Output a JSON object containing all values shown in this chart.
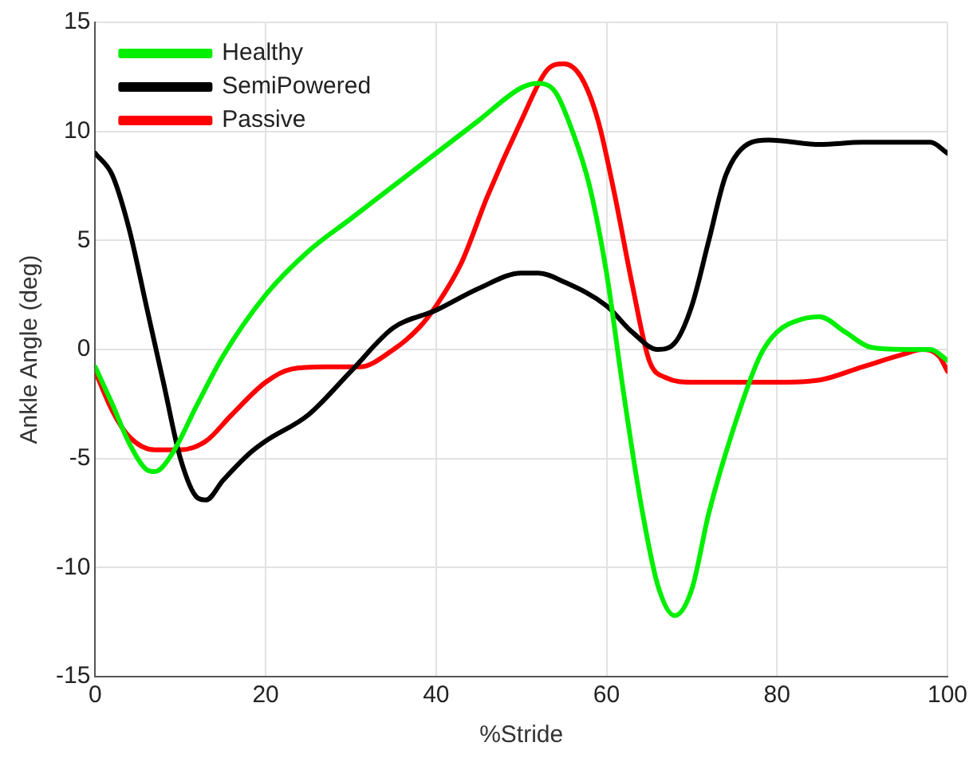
{
  "chart_data": {
    "type": "line",
    "xlabel": "%Stride",
    "ylabel": "Ankle Angle (deg)",
    "xlim": [
      0,
      100
    ],
    "xticks": [
      0,
      20,
      40,
      60,
      80,
      100
    ],
    "ylim": [
      -15,
      15
    ],
    "yticks": [
      -15,
      -10,
      -5,
      0,
      5,
      10,
      15
    ],
    "grid": true,
    "legend": "top left",
    "marker": "none",
    "line_style": "solid",
    "series": [
      {
        "name": "Healthy",
        "color": "#00ee00",
        "x": [
          0,
          2,
          4,
          6,
          7,
          9,
          12,
          15,
          20,
          25,
          30,
          35,
          40,
          45,
          50,
          52,
          54,
          56,
          58,
          60,
          62,
          64,
          66,
          68,
          70,
          72,
          75,
          78,
          80,
          83,
          85,
          88,
          91,
          95,
          98,
          100
        ],
        "values": [
          -0.8,
          -2.5,
          -4.3,
          -5.5,
          -5.6,
          -4.8,
          -2.5,
          -0.3,
          2.5,
          4.5,
          6,
          7.5,
          9,
          10.5,
          12,
          12.2,
          11.8,
          10,
          7.5,
          3.5,
          -2,
          -7,
          -10.8,
          -12.2,
          -11,
          -7.5,
          -3.5,
          -0.3,
          0.8,
          1.4,
          1.5,
          0.8,
          0.1,
          0,
          0,
          -0.5
        ]
      },
      {
        "name": "SemiPowered",
        "color": "#000000",
        "x": [
          0,
          2,
          4,
          6,
          8,
          10,
          12,
          13,
          15,
          18,
          20,
          25,
          30,
          35,
          40,
          45,
          50,
          52,
          55,
          60,
          63,
          66,
          68,
          70,
          72,
          74,
          77,
          79,
          85,
          90,
          95,
          98,
          100
        ],
        "values": [
          9,
          8,
          5.5,
          2,
          -1.5,
          -5,
          -6.8,
          -6.9,
          -6,
          -4.8,
          -4.2,
          -3,
          -1,
          1,
          1.8,
          2.8,
          3.5,
          3.5,
          3.1,
          2,
          0.8,
          0,
          0.3,
          2,
          5,
          8,
          9.5,
          9.6,
          9.4,
          9.5,
          9.5,
          9.5,
          9
        ]
      },
      {
        "name": "Passive",
        "color": "#ff0000",
        "x": [
          0,
          2,
          4,
          7,
          10,
          13,
          16,
          20,
          23,
          27,
          31,
          35,
          38,
          40,
          43,
          46,
          50,
          53,
          55,
          57,
          59,
          61,
          63,
          65,
          67,
          70,
          75,
          80,
          85,
          90,
          95,
          97,
          99,
          100
        ],
        "values": [
          -1,
          -2.8,
          -4,
          -4.6,
          -4.6,
          -4.2,
          -3,
          -1.5,
          -0.9,
          -0.8,
          -0.8,
          0,
          1,
          2,
          4,
          7,
          10.5,
          12.8,
          13.1,
          12.5,
          10.5,
          7,
          3,
          -0.5,
          -1.3,
          -1.5,
          -1.5,
          -1.5,
          -1.4,
          -0.8,
          -0.2,
          0,
          -0.3,
          -1
        ]
      }
    ]
  }
}
